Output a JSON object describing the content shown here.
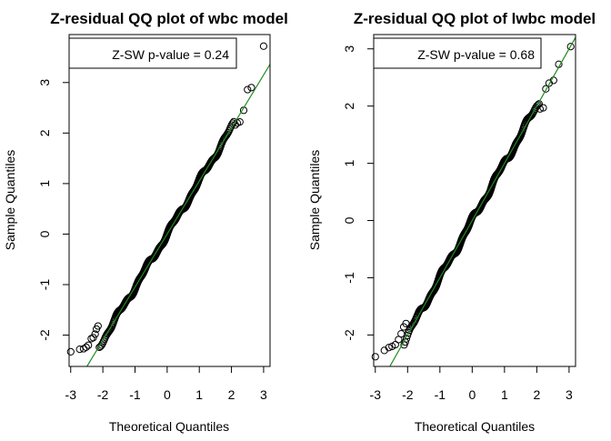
{
  "chart_data": [
    {
      "type": "scatter",
      "title": "Z-residual QQ plot of wbc model",
      "xlabel": "Theoretical Quantiles",
      "ylabel": "Sample Quantiles",
      "xlim": [
        -3.05,
        3.2
      ],
      "ylim": [
        -2.62,
        3.95
      ],
      "xticks": [
        "-3",
        "-2",
        "-1",
        "0",
        "1",
        "2",
        "3"
      ],
      "yticks": [
        "-2",
        "-1",
        "0",
        "1",
        "2",
        "3"
      ],
      "legend": {
        "text": "Z-SW p-value = 0.24",
        "placement": "top-right"
      },
      "reference_line": {
        "intercept": 0.0,
        "slope": 1.05,
        "color": "#228B22"
      },
      "point_color": "#000000",
      "n_points": 600,
      "outliers": [
        [
          -3.0,
          -2.33
        ],
        [
          -2.72,
          -2.28
        ],
        [
          -2.6,
          -2.27
        ],
        [
          -2.52,
          -2.24
        ],
        [
          -2.45,
          -2.2
        ],
        [
          -2.36,
          -2.07
        ],
        [
          -2.3,
          -2.05
        ],
        [
          -2.24,
          -1.98
        ],
        [
          -2.2,
          -1.88
        ],
        [
          -2.15,
          -1.82
        ],
        [
          2.12,
          2.16
        ],
        [
          2.18,
          2.2
        ],
        [
          2.26,
          2.22
        ],
        [
          2.38,
          2.45
        ],
        [
          2.5,
          2.86
        ],
        [
          2.62,
          2.9
        ],
        [
          3.0,
          3.72
        ]
      ]
    },
    {
      "type": "scatter",
      "title": "Z-residual QQ plot of lwbc model",
      "xlabel": "Theoretical Quantiles",
      "ylabel": "Sample Quantiles",
      "xlim": [
        -3.05,
        3.2
      ],
      "ylim": [
        -2.55,
        3.25
      ],
      "xticks": [
        "-3",
        "-2",
        "-1",
        "0",
        "1",
        "2",
        "3"
      ],
      "yticks": [
        "-2",
        "-1",
        "0",
        "1",
        "2",
        "3"
      ],
      "legend": {
        "text": "Z-SW p-value = 0.68",
        "placement": "top-right"
      },
      "reference_line": {
        "intercept": 0.0,
        "slope": 1.0,
        "color": "#228B22"
      },
      "point_color": "#000000",
      "n_points": 600,
      "outliers": [
        [
          -3.0,
          -2.38
        ],
        [
          -2.72,
          -2.27
        ],
        [
          -2.58,
          -2.22
        ],
        [
          -2.48,
          -2.2
        ],
        [
          -2.38,
          -2.17
        ],
        [
          -2.28,
          -2.08
        ],
        [
          -2.2,
          -1.98
        ],
        [
          -2.12,
          -1.86
        ],
        [
          -2.05,
          -1.8
        ],
        [
          2.1,
          1.95
        ],
        [
          2.2,
          1.97
        ],
        [
          2.28,
          2.3
        ],
        [
          2.38,
          2.4
        ],
        [
          2.52,
          2.45
        ],
        [
          2.68,
          2.73
        ],
        [
          3.05,
          3.04
        ]
      ]
    }
  ]
}
